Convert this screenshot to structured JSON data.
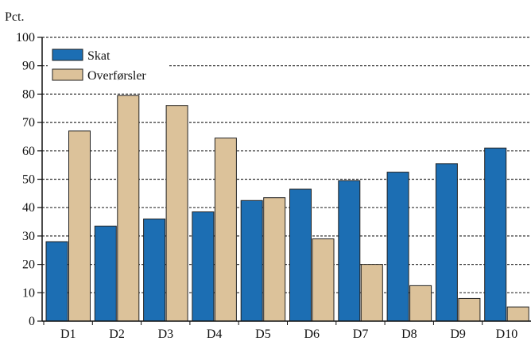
{
  "chart_data": {
    "type": "bar",
    "ylabel": "Pct.",
    "xlabel": "",
    "ylim": [
      0,
      100
    ],
    "yticks": [
      0,
      10,
      20,
      30,
      40,
      50,
      60,
      70,
      80,
      90,
      100
    ],
    "grid": "horizontal dashed",
    "legend_position": "top-left",
    "categories": [
      "D1",
      "D2",
      "D3",
      "D4",
      "D5",
      "D6",
      "D7",
      "D8",
      "D9",
      "D10"
    ],
    "series": [
      {
        "name": "Skat",
        "color": "#1c6eb3",
        "values": [
          28,
          33.5,
          36,
          38.5,
          42.5,
          46.5,
          49.5,
          52.5,
          55.5,
          61
        ]
      },
      {
        "name": "Overførsler",
        "color": "#dcc29a",
        "values": [
          67,
          79.5,
          76,
          64.5,
          43.5,
          29,
          20,
          12.5,
          8,
          5
        ]
      }
    ]
  }
}
